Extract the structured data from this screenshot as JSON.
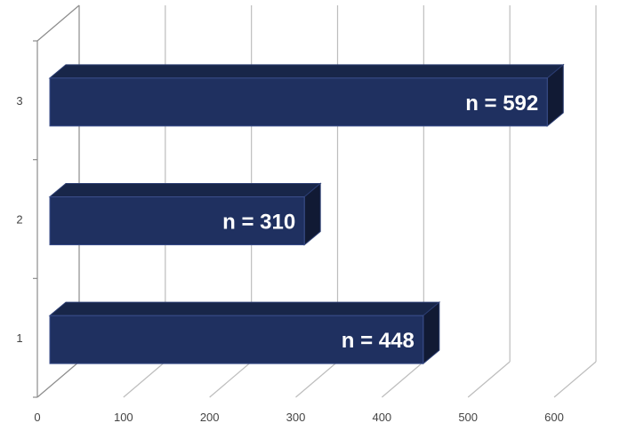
{
  "chart_data": {
    "type": "bar",
    "orientation": "horizontal",
    "three_d": true,
    "categories": [
      "1",
      "2",
      "3"
    ],
    "values": [
      448,
      310,
      592
    ],
    "data_labels": [
      "n = 448",
      "n = 310",
      "n = 592"
    ],
    "title": "",
    "xlabel": "",
    "ylabel": "",
    "xlim": [
      0,
      600
    ],
    "x_ticks": [
      "0",
      "100",
      "200",
      "300",
      "400",
      "500",
      "600"
    ],
    "grid": true,
    "bar_color": "#1f3060",
    "bar_top_color": "#182649",
    "bar_side_color": "#111a34"
  }
}
